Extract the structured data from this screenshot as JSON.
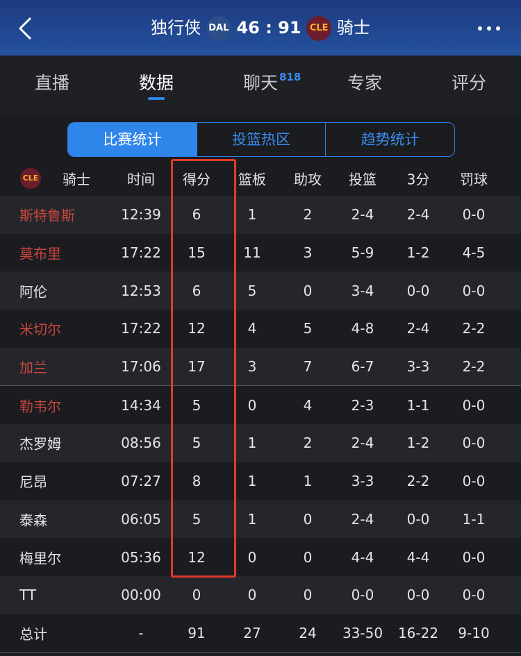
{
  "header": {
    "home": "独行侠",
    "home_logo": "DAL",
    "score": "46 : 91",
    "away_logo": "CLE",
    "away": "骑士"
  },
  "tabs": [
    "直播",
    "数据",
    "聊天",
    "专家",
    "评分"
  ],
  "chat_badge": "818",
  "active_tab": 1,
  "segments": [
    "比赛统计",
    "投篮热区",
    "趋势统计"
  ],
  "table": {
    "team_logo": "CLE",
    "columns": [
      "骑士",
      "时间",
      "得分",
      "篮板",
      "助攻",
      "投篮",
      "3分",
      "罚球"
    ],
    "rows": [
      {
        "cells": [
          "斯特鲁斯",
          "12:39",
          "6",
          "1",
          "2",
          "2-4",
          "2-4",
          "0-0"
        ],
        "name_color": "#c8463c"
      },
      {
        "cells": [
          "莫布里",
          "17:22",
          "15",
          "11",
          "3",
          "5-9",
          "1-2",
          "4-5"
        ],
        "name_color": "#c8463c"
      },
      {
        "cells": [
          "阿伦",
          "12:53",
          "6",
          "5",
          "0",
          "3-4",
          "0-0",
          "0-0"
        ],
        "name_color": "#e6e6e8"
      },
      {
        "cells": [
          "米切尔",
          "17:22",
          "12",
          "4",
          "5",
          "4-8",
          "2-4",
          "2-2"
        ],
        "name_color": "#c8463c"
      },
      {
        "cells": [
          "加兰",
          "17:06",
          "17",
          "3",
          "7",
          "6-7",
          "3-3",
          "2-2"
        ],
        "name_color": "#c8463c"
      },
      {
        "cells": [
          "勒韦尔",
          "14:34",
          "5",
          "0",
          "4",
          "2-3",
          "1-1",
          "0-0"
        ],
        "name_color": "#c8463c"
      },
      {
        "cells": [
          "杰罗姆",
          "08:56",
          "5",
          "1",
          "2",
          "2-4",
          "1-2",
          "0-0"
        ],
        "name_color": "#e6e6e8"
      },
      {
        "cells": [
          "尼昂",
          "07:27",
          "8",
          "1",
          "1",
          "3-3",
          "2-2",
          "0-0"
        ],
        "name_color": "#e6e6e8"
      },
      {
        "cells": [
          "泰森",
          "06:05",
          "5",
          "1",
          "0",
          "2-4",
          "0-0",
          "1-1"
        ],
        "name_color": "#e6e6e8"
      },
      {
        "cells": [
          "梅里尔",
          "05:36",
          "12",
          "0",
          "0",
          "4-4",
          "4-4",
          "0-0"
        ],
        "name_color": "#e6e6e8"
      },
      {
        "cells": [
          "TT",
          "00:00",
          "0",
          "0",
          "0",
          "0-0",
          "0-0",
          "0-0"
        ],
        "name_color": "#e6e6e8"
      },
      {
        "cells": [
          "总计",
          "-",
          "91",
          "27",
          "24",
          "33-50",
          "16-22",
          "9-10"
        ],
        "name_color": "#e6e6e8"
      }
    ]
  }
}
